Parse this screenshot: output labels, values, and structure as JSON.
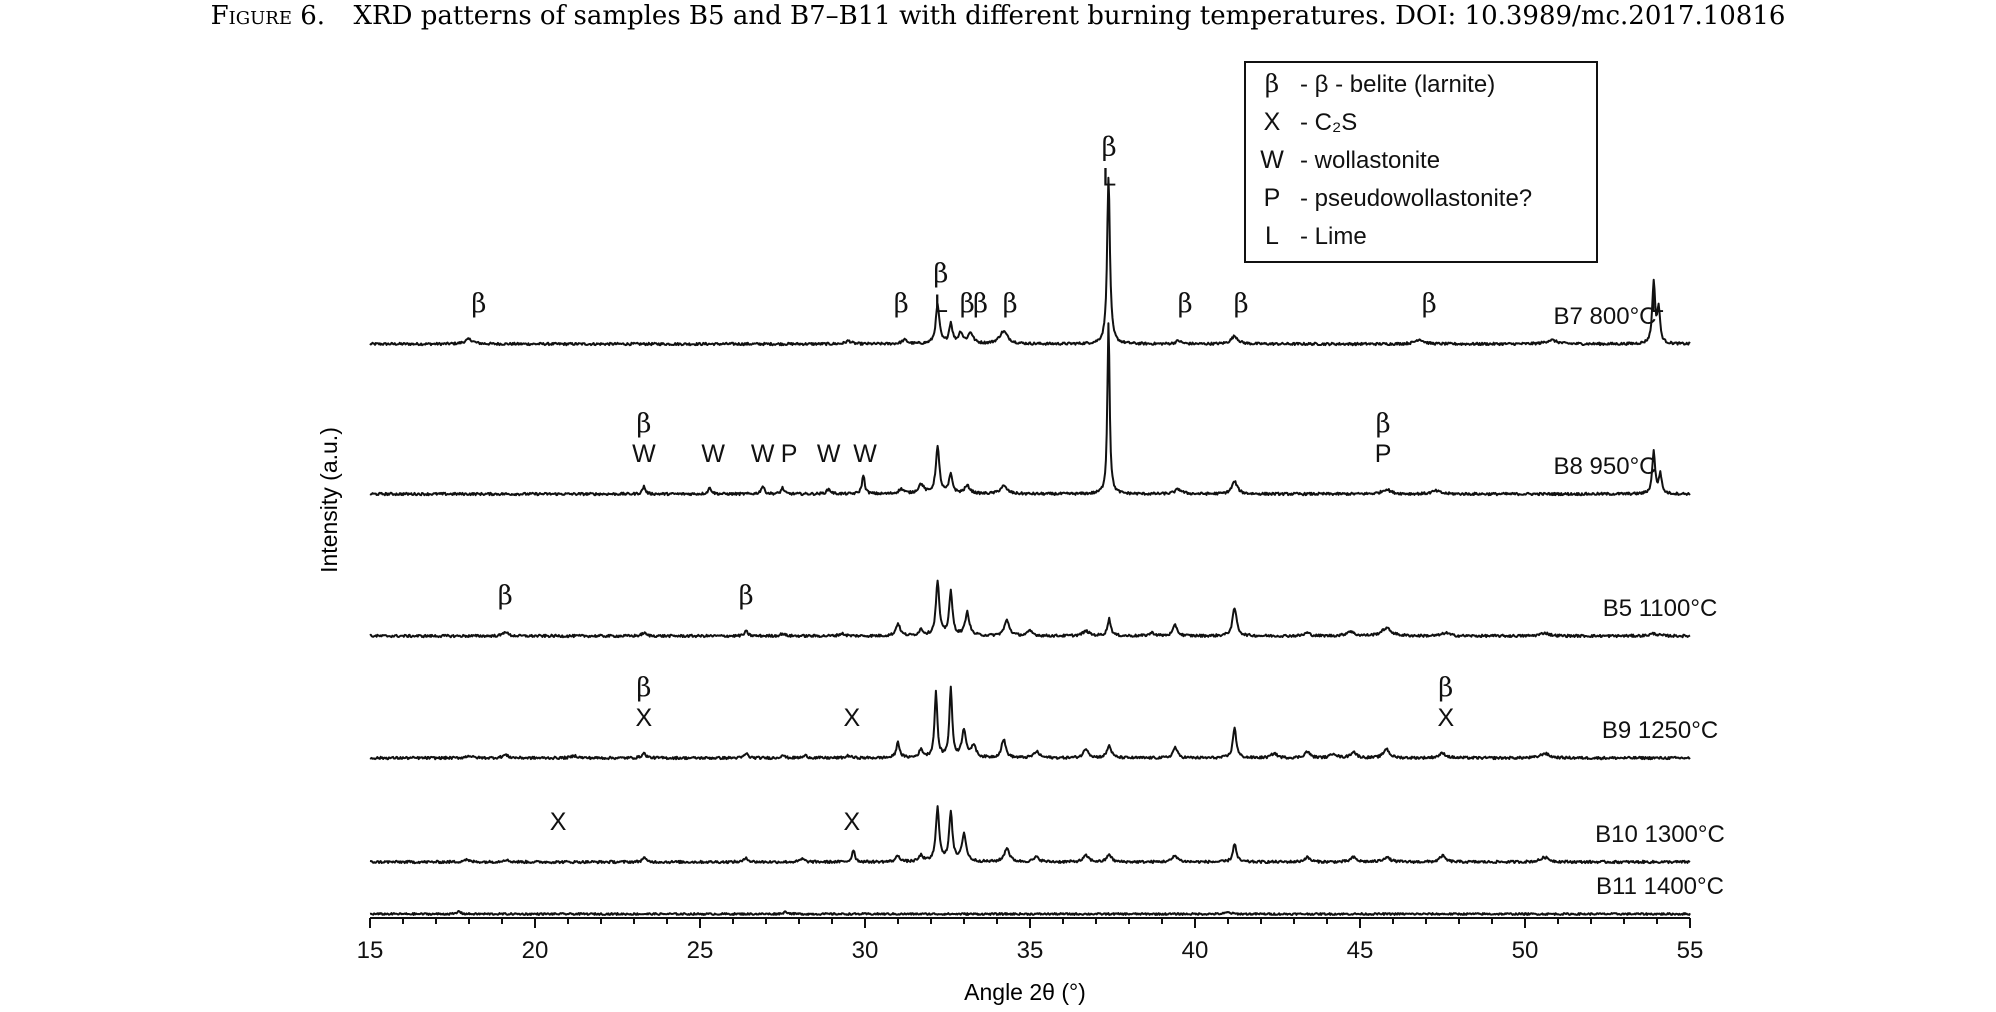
{
  "figure": {
    "caption_label": "Figure 6.",
    "caption_text": "XRD patterns of samples B5 and B7–B11 with different burning temperatures. DOI: 10.3989/mc.2017.10816"
  },
  "chart_data": {
    "type": "line",
    "xlabel": "Angle 2θ (°)",
    "ylabel": "Intensity (a.u.)",
    "xlim": [
      15,
      55
    ],
    "xticks": [
      15,
      20,
      25,
      30,
      35,
      40,
      45,
      50,
      55
    ],
    "grid": false,
    "legend_placement": "top-right",
    "legend": [
      {
        "symbol": "β",
        "text": "- β - belite (larnite)"
      },
      {
        "symbol": "X",
        "text": "- C₂S"
      },
      {
        "symbol": "W",
        "text": "- wollastonite"
      },
      {
        "symbol": "P",
        "text": "- pseudowollastonite?"
      },
      {
        "symbol": "L",
        "text": "- Lime"
      }
    ],
    "series": [
      {
        "name": "B7 800°C",
        "noise": 0.8,
        "peaks": [
          [
            18.0,
            3,
            0.3
          ],
          [
            29.5,
            2,
            0.2
          ],
          [
            31.2,
            2.5,
            0.2
          ],
          [
            32.2,
            25,
            0.13
          ],
          [
            32.6,
            13,
            0.12
          ],
          [
            32.9,
            7,
            0.15
          ],
          [
            33.2,
            7,
            0.18
          ],
          [
            34.2,
            8,
            0.3
          ],
          [
            37.38,
            108,
            0.1
          ],
          [
            39.5,
            2,
            0.2
          ],
          [
            41.2,
            5,
            0.25
          ],
          [
            46.8,
            3,
            0.3
          ],
          [
            50.8,
            2.5,
            0.4
          ],
          [
            53.9,
            40,
            0.1
          ],
          [
            54.05,
            22,
            0.1
          ]
        ],
        "labels": [
          {
            "x": 18.3,
            "lines": [
              "β"
            ]
          },
          {
            "x": 31.1,
            "lines": [
              "β"
            ]
          },
          {
            "x": 32.3,
            "lines": [
              "β",
              "L"
            ]
          },
          {
            "x": 33.1,
            "lines": [
              "β"
            ]
          },
          {
            "x": 33.5,
            "lines": [
              "β"
            ]
          },
          {
            "x": 34.4,
            "lines": [
              "β"
            ]
          },
          {
            "x": 37.4,
            "lines": [
              "β",
              "L"
            ]
          },
          {
            "x": 39.7,
            "lines": [
              "β"
            ]
          },
          {
            "x": 41.4,
            "lines": [
              "β"
            ]
          },
          {
            "x": 47.1,
            "lines": [
              "β"
            ]
          },
          {
            "x": 54.0,
            "lines": [
              "L"
            ]
          }
        ]
      },
      {
        "name": "B8 950°C",
        "noise": 0.8,
        "peaks": [
          [
            23.3,
            5,
            0.1
          ],
          [
            25.3,
            4,
            0.12
          ],
          [
            26.9,
            5,
            0.12
          ],
          [
            27.5,
            4,
            0.1
          ],
          [
            28.9,
            3,
            0.15
          ],
          [
            29.95,
            12,
            0.1
          ],
          [
            31.1,
            3,
            0.2
          ],
          [
            31.7,
            6,
            0.2
          ],
          [
            32.2,
            30,
            0.13
          ],
          [
            32.6,
            12,
            0.13
          ],
          [
            33.1,
            5,
            0.2
          ],
          [
            34.2,
            5,
            0.25
          ],
          [
            37.38,
            112,
            0.08
          ],
          [
            39.5,
            3,
            0.25
          ],
          [
            41.2,
            8,
            0.2
          ],
          [
            45.8,
            3,
            0.3
          ],
          [
            47.3,
            2,
            0.3
          ],
          [
            53.9,
            28,
            0.1
          ],
          [
            54.1,
            13,
            0.1
          ]
        ],
        "labels": [
          {
            "x": 23.3,
            "lines": [
              "β",
              "W"
            ]
          },
          {
            "x": 25.4,
            "lines": [
              "W"
            ]
          },
          {
            "x": 26.9,
            "lines": [
              "W"
            ]
          },
          {
            "x": 27.7,
            "lines": [
              "P"
            ]
          },
          {
            "x": 28.9,
            "lines": [
              "W"
            ]
          },
          {
            "x": 30.0,
            "lines": [
              "W"
            ]
          },
          {
            "x": 45.7,
            "lines": [
              "β",
              "P"
            ]
          }
        ]
      },
      {
        "name": "B5 1100°C",
        "noise": 0.8,
        "peaks": [
          [
            19.1,
            3,
            0.15
          ],
          [
            23.3,
            2,
            0.15
          ],
          [
            26.4,
            3,
            0.12
          ],
          [
            27.5,
            1.5,
            0.15
          ],
          [
            29.3,
            1.5,
            0.2
          ],
          [
            31.0,
            8,
            0.15
          ],
          [
            31.7,
            4,
            0.15
          ],
          [
            32.2,
            35,
            0.12
          ],
          [
            32.6,
            28,
            0.12
          ],
          [
            33.1,
            15,
            0.15
          ],
          [
            34.3,
            10,
            0.18
          ],
          [
            35.0,
            3,
            0.2
          ],
          [
            36.7,
            3,
            0.25
          ],
          [
            37.4,
            11,
            0.12
          ],
          [
            38.7,
            2,
            0.2
          ],
          [
            39.4,
            7,
            0.15
          ],
          [
            41.2,
            18,
            0.15
          ],
          [
            43.4,
            2,
            0.2
          ],
          [
            44.7,
            3,
            0.25
          ],
          [
            45.8,
            5,
            0.35
          ],
          [
            47.6,
            2,
            0.25
          ],
          [
            50.6,
            2,
            0.3
          ],
          [
            53.9,
            1.5,
            0.3
          ]
        ],
        "labels": [
          {
            "x": 19.1,
            "lines": [
              "β"
            ]
          },
          {
            "x": 26.4,
            "lines": [
              "β"
            ]
          }
        ]
      },
      {
        "name": "B9 1250°C",
        "noise": 0.8,
        "peaks": [
          [
            18.0,
            1.5,
            0.2
          ],
          [
            19.1,
            2,
            0.2
          ],
          [
            21.2,
            1.5,
            0.2
          ],
          [
            23.3,
            3,
            0.15
          ],
          [
            26.4,
            3,
            0.12
          ],
          [
            27.5,
            2,
            0.12
          ],
          [
            28.2,
            1.5,
            0.15
          ],
          [
            29.5,
            1.5,
            0.15
          ],
          [
            31.0,
            10,
            0.12
          ],
          [
            31.7,
            5,
            0.15
          ],
          [
            32.15,
            42,
            0.1
          ],
          [
            32.6,
            45,
            0.1
          ],
          [
            33.0,
            18,
            0.15
          ],
          [
            33.3,
            8,
            0.15
          ],
          [
            34.2,
            12,
            0.15
          ],
          [
            35.2,
            4,
            0.2
          ],
          [
            36.7,
            6,
            0.18
          ],
          [
            37.4,
            8,
            0.15
          ],
          [
            39.4,
            7,
            0.15
          ],
          [
            41.2,
            20,
            0.12
          ],
          [
            42.4,
            3,
            0.2
          ],
          [
            43.4,
            4,
            0.2
          ],
          [
            44.2,
            3,
            0.2
          ],
          [
            44.8,
            4,
            0.2
          ],
          [
            45.8,
            6,
            0.2
          ],
          [
            47.5,
            3,
            0.25
          ],
          [
            50.6,
            3,
            0.3
          ]
        ],
        "labels": [
          {
            "x": 23.3,
            "lines": [
              "β",
              "X"
            ]
          },
          {
            "x": 29.6,
            "lines": [
              "X"
            ]
          },
          {
            "x": 47.6,
            "lines": [
              "β",
              "X"
            ]
          }
        ]
      },
      {
        "name": "B10 1300°C",
        "noise": 0.8,
        "peaks": [
          [
            17.9,
            1.5,
            0.2
          ],
          [
            19.1,
            1.5,
            0.2
          ],
          [
            23.3,
            3,
            0.12
          ],
          [
            26.4,
            3,
            0.12
          ],
          [
            28.1,
            2,
            0.15
          ],
          [
            29.65,
            8,
            0.1
          ],
          [
            31.0,
            4,
            0.15
          ],
          [
            31.7,
            4,
            0.15
          ],
          [
            32.2,
            35,
            0.12
          ],
          [
            32.6,
            32,
            0.12
          ],
          [
            33.0,
            18,
            0.15
          ],
          [
            34.3,
            9,
            0.18
          ],
          [
            35.2,
            3,
            0.2
          ],
          [
            36.7,
            4,
            0.2
          ],
          [
            37.4,
            5,
            0.15
          ],
          [
            39.4,
            4,
            0.2
          ],
          [
            41.2,
            12,
            0.12
          ],
          [
            43.4,
            3,
            0.2
          ],
          [
            44.8,
            3,
            0.2
          ],
          [
            45.8,
            3,
            0.25
          ],
          [
            47.5,
            4,
            0.2
          ],
          [
            50.6,
            3,
            0.3
          ]
        ],
        "labels": [
          {
            "x": 20.7,
            "lines": [
              "X"
            ]
          },
          {
            "x": 29.6,
            "lines": [
              "X"
            ]
          }
        ]
      },
      {
        "name": "B11 1400°C",
        "noise": 0.6,
        "peaks": [
          [
            17.7,
            2,
            0.1
          ],
          [
            27.6,
            1.5,
            0.15
          ],
          [
            41.0,
            1,
            0.2
          ]
        ],
        "labels": []
      }
    ]
  }
}
